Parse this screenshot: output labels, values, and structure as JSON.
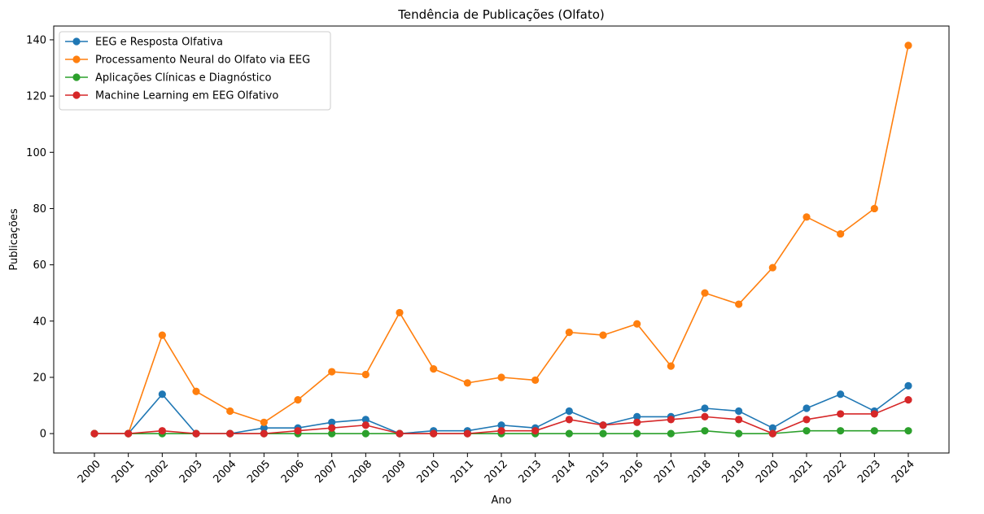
{
  "chart_data": {
    "type": "line",
    "title": "Tendência de Publicações (Olfato)",
    "xlabel": "Ano",
    "ylabel": "Publicações",
    "x": [
      "2000",
      "2001",
      "2002",
      "2003",
      "2004",
      "2005",
      "2006",
      "2007",
      "2008",
      "2009",
      "2010",
      "2011",
      "2012",
      "2013",
      "2014",
      "2015",
      "2016",
      "2017",
      "2018",
      "2019",
      "2020",
      "2021",
      "2022",
      "2023",
      "2024"
    ],
    "ylim": [
      -6.9,
      144.9
    ],
    "yticks": [
      0,
      20,
      40,
      60,
      80,
      100,
      120,
      140
    ],
    "grid": false,
    "legend": "top-left",
    "series": [
      {
        "name": "EEG e Resposta Olfativa",
        "color": "#1f77b4",
        "values": [
          0,
          0,
          14,
          0,
          0,
          2,
          2,
          4,
          5,
          0,
          1,
          1,
          3,
          2,
          8,
          3,
          6,
          6,
          9,
          8,
          2,
          9,
          14,
          8,
          17
        ]
      },
      {
        "name": "Processamento Neural do Olfato via EEG",
        "color": "#ff7f0e",
        "values": [
          0,
          0,
          35,
          15,
          8,
          4,
          12,
          22,
          21,
          43,
          23,
          18,
          20,
          19,
          36,
          35,
          39,
          24,
          50,
          46,
          59,
          77,
          71,
          80,
          138
        ]
      },
      {
        "name": "Aplicações Clínicas e Diagnóstico",
        "color": "#2ca02c",
        "values": [
          0,
          0,
          0,
          0,
          0,
          0,
          0,
          0,
          0,
          0,
          0,
          0,
          0,
          0,
          0,
          0,
          0,
          0,
          1,
          0,
          0,
          1,
          1,
          1,
          1
        ]
      },
      {
        "name": "Machine Learning em EEG Olfativo",
        "color": "#d62728",
        "values": [
          0,
          0,
          1,
          0,
          0,
          0,
          1,
          2,
          3,
          0,
          0,
          0,
          1,
          1,
          5,
          3,
          4,
          5,
          6,
          5,
          0,
          5,
          7,
          7,
          12
        ]
      }
    ]
  }
}
